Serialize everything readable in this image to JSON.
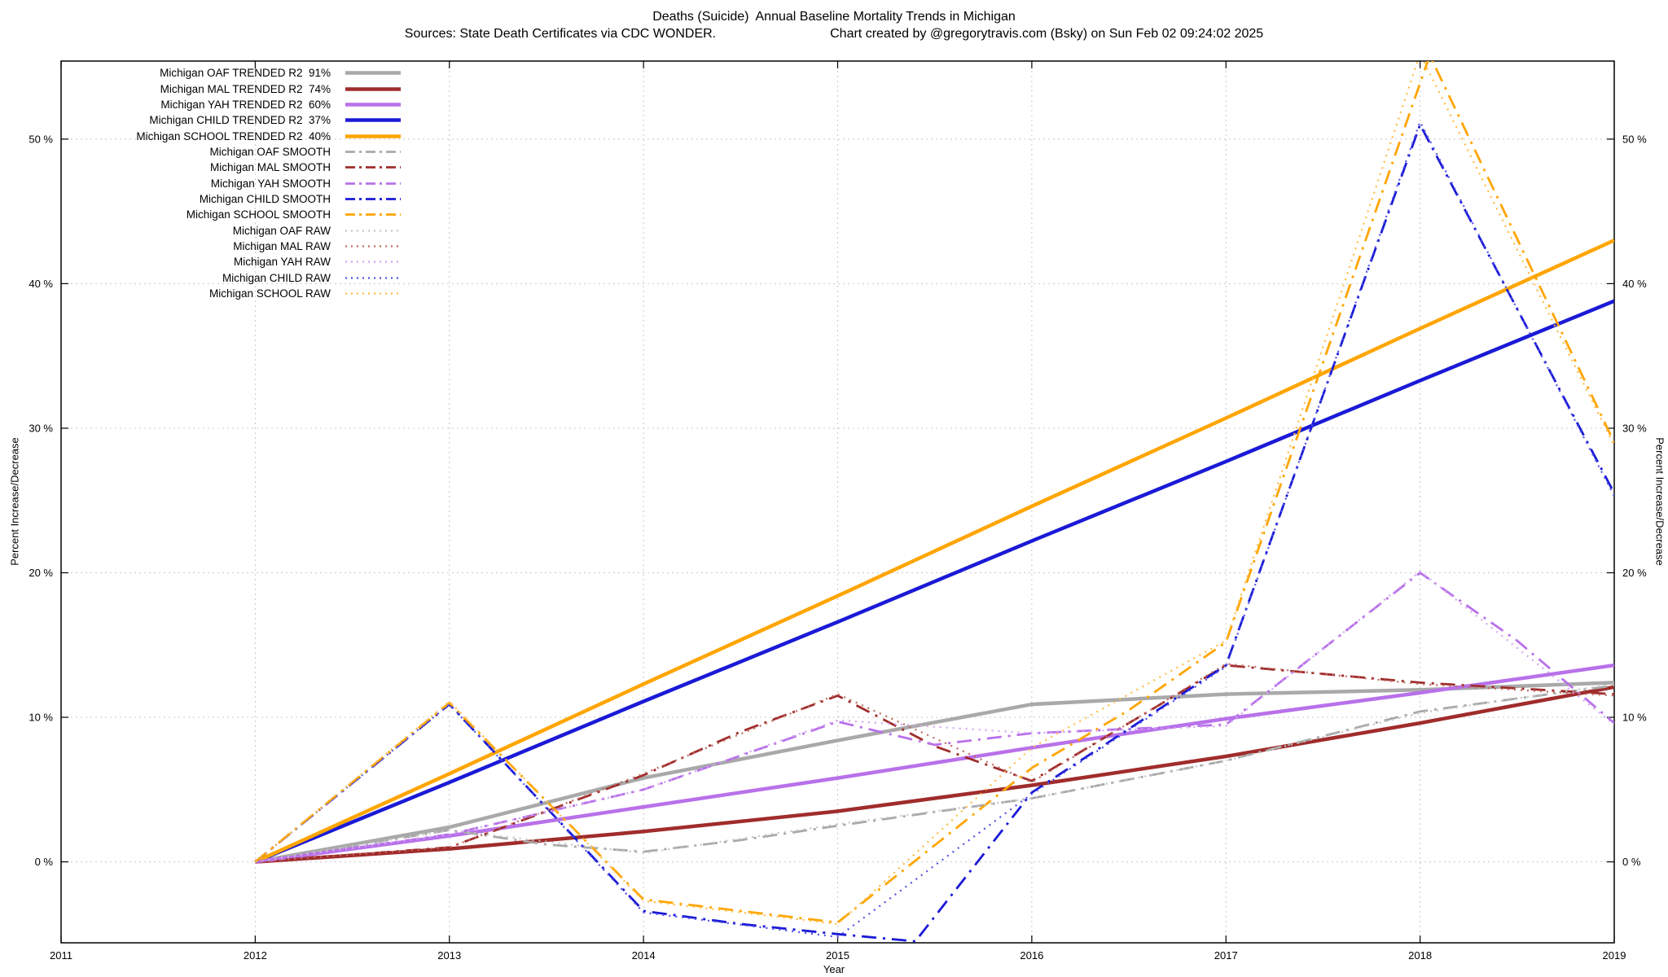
{
  "chart_data": {
    "type": "line",
    "title": "Deaths (Suicide)  Annual Baseline Mortality Trends in Michigan",
    "sources": "Sources: State Death Certificates via CDC WONDER.",
    "credit": "Chart created by @gregorytravis.com (Bsky) on Sun Feb 02 09:24:02 2025",
    "xlabel": "Year",
    "ylabel": "Percent Increase/Decrease",
    "xlim": [
      2011,
      2019
    ],
    "ylim": [
      -5.6,
      55.4
    ],
    "xticks": [
      2011,
      2012,
      2013,
      2014,
      2015,
      2016,
      2017,
      2018,
      2019
    ],
    "yticks": [
      0,
      10,
      20,
      30,
      40,
      50
    ],
    "ytick_suffix": " %",
    "grid": true,
    "legend_position": "top-left",
    "axis_color": "#000000",
    "grid_color": "#c8c8c8",
    "series": [
      {
        "id": "oaf-trended",
        "name": "Michigan OAF TRENDED R2  91%",
        "color": "#a9a9a9",
        "style": "solid",
        "x": [
          2012,
          2013,
          2014,
          2015,
          2016,
          2017,
          2018,
          2019
        ],
        "y": [
          0,
          2.4,
          5.8,
          8.4,
          10.9,
          11.6,
          11.9,
          12.4
        ]
      },
      {
        "id": "mal-trended",
        "name": "Michigan MAL TRENDED R2  74%",
        "color": "#a02c2c",
        "style": "solid",
        "x": [
          2012,
          2013,
          2014,
          2015,
          2016,
          2017,
          2018,
          2019
        ],
        "y": [
          0,
          0.9,
          2.1,
          3.5,
          5.3,
          7.3,
          9.6,
          12.1
        ]
      },
      {
        "id": "yah-trended",
        "name": "Michigan YAH TRENDED R2  60%",
        "color": "#b871ea",
        "style": "solid",
        "x": [
          2012,
          2013,
          2014,
          2015,
          2016,
          2017,
          2018,
          2019
        ],
        "y": [
          0,
          1.8,
          3.8,
          5.8,
          7.9,
          9.9,
          11.7,
          13.6
        ]
      },
      {
        "id": "child-trended",
        "name": "Michigan CHILD TRENDED R2  37%",
        "color": "#1a1ad6",
        "style": "solid",
        "x": [
          2012,
          2013,
          2014,
          2015,
          2016,
          2017,
          2018,
          2019
        ],
        "y": [
          0,
          5.5,
          11.1,
          16.6,
          22.2,
          27.7,
          33.3,
          38.8
        ]
      },
      {
        "id": "school-trended",
        "name": "Michigan SCHOOL TRENDED R2  40%",
        "color": "#ffa500",
        "style": "solid",
        "x": [
          2012,
          2013,
          2014,
          2015,
          2016,
          2017,
          2018,
          2019
        ],
        "y": [
          0,
          6.1,
          12.3,
          18.4,
          24.6,
          30.7,
          36.9,
          43.0
        ]
      },
      {
        "id": "oaf-smooth",
        "name": "Michigan OAF SMOOTH",
        "color": "#a9a9a9",
        "style": "dashdot",
        "x": [
          2012,
          2013,
          2013.5,
          2014,
          2014.5,
          2015,
          2016,
          2017,
          2018,
          2019
        ],
        "y": [
          0,
          2.2,
          1.2,
          0.7,
          1.5,
          2.5,
          4.4,
          7.0,
          10.4,
          12.2
        ]
      },
      {
        "id": "mal-smooth",
        "name": "Michigan MAL SMOOTH",
        "color": "#a02c2c",
        "style": "dashdot",
        "x": [
          2012,
          2013,
          2014,
          2014.5,
          2015,
          2015.5,
          2016,
          2016.5,
          2017,
          2018,
          2019
        ],
        "y": [
          0,
          1.0,
          6.0,
          9.0,
          11.5,
          8.0,
          5.6,
          9.6,
          13.6,
          12.4,
          11.6
        ]
      },
      {
        "id": "yah-smooth",
        "name": "Michigan YAH SMOOTH",
        "color": "#b871ea",
        "style": "dashdot",
        "x": [
          2012,
          2013,
          2014,
          2015,
          2015.5,
          2016,
          2017,
          2018,
          2018.5,
          2019
        ],
        "y": [
          0,
          1.9,
          5.0,
          9.7,
          8.1,
          8.9,
          9.5,
          20.0,
          15.3,
          9.6
        ]
      },
      {
        "id": "child-smooth",
        "name": "Michigan CHILD SMOOTH",
        "color": "#1a1ad6",
        "style": "dashdot",
        "x": [
          2012,
          2013,
          2014,
          2014.5,
          2015,
          2015.4,
          2016,
          2017,
          2018,
          2019
        ],
        "y": [
          0,
          10.9,
          -3.4,
          -4.3,
          -5.0,
          -5.5,
          4.8,
          13.6,
          51.0,
          25.5
        ]
      },
      {
        "id": "school-smooth",
        "name": "Michigan SCHOOL SMOOTH",
        "color": "#ffa500",
        "style": "dashdot",
        "x": [
          2012,
          2013,
          2014,
          2015,
          2016,
          2016.5,
          2017,
          2018.05,
          2019
        ],
        "y": [
          0,
          11.0,
          -2.6,
          -4.2,
          6.5,
          10.5,
          15.2,
          55.8,
          29.0
        ]
      },
      {
        "id": "oaf-raw",
        "name": "Michigan OAF RAW",
        "color": "#c4c4c4",
        "style": "dot",
        "x": [
          2012,
          2013,
          2014,
          2015,
          2016,
          2017,
          2018,
          2019
        ],
        "y": [
          0,
          2.2,
          0.6,
          2.6,
          4.4,
          7.0,
          10.3,
          12.3
        ]
      },
      {
        "id": "mal-raw",
        "name": "Michigan MAL RAW",
        "color": "#bc6a60",
        "style": "dot",
        "x": [
          2012,
          2013,
          2014,
          2015,
          2016,
          2017,
          2018,
          2019
        ],
        "y": [
          0,
          1.0,
          6.1,
          11.6,
          5.5,
          13.7,
          12.3,
          11.5
        ]
      },
      {
        "id": "yah-raw",
        "name": "Michigan YAH RAW",
        "color": "#d2a4f0",
        "style": "dot",
        "x": [
          2012,
          2013,
          2014,
          2015,
          2016,
          2017,
          2018,
          2019
        ],
        "y": [
          0,
          1.9,
          5.0,
          9.8,
          8.9,
          9.4,
          20.1,
          9.5
        ]
      },
      {
        "id": "child-raw",
        "name": "Michigan CHILD RAW",
        "color": "#5050e6",
        "style": "dot",
        "x": [
          2012,
          2013,
          2014,
          2015,
          2016,
          2017,
          2018,
          2019
        ],
        "y": [
          0,
          10.9,
          -3.5,
          -5.2,
          4.7,
          13.5,
          51.2,
          25.3
        ]
      },
      {
        "id": "school-raw",
        "name": "Michigan SCHOOL RAW",
        "color": "#ffbb44",
        "style": "dot",
        "x": [
          2012,
          2013,
          2014,
          2015,
          2016,
          2017,
          2018,
          2019
        ],
        "y": [
          0,
          11.1,
          -2.7,
          -4.3,
          7.9,
          15.3,
          55.9,
          28.8
        ]
      }
    ]
  }
}
